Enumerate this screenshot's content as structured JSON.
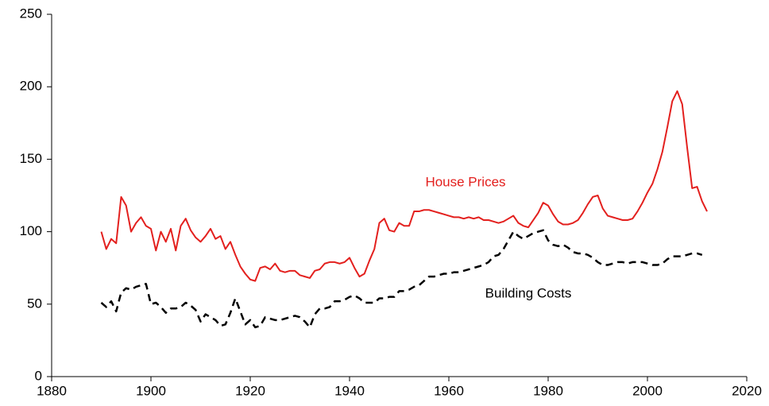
{
  "chart_data": {
    "type": "line",
    "xlim": [
      1880,
      2020
    ],
    "xticks": [
      1880,
      1900,
      1920,
      1940,
      1960,
      1980,
      2000,
      2020
    ],
    "ylim": [
      0,
      250
    ],
    "yticks": [
      0,
      50,
      100,
      150,
      200,
      250
    ],
    "series": [
      {
        "name": "House Prices",
        "color": "#e3201e",
        "dashed": false,
        "x": [
          1890,
          1891,
          1892,
          1893,
          1894,
          1895,
          1896,
          1897,
          1898,
          1899,
          1900,
          1901,
          1902,
          1903,
          1904,
          1905,
          1906,
          1907,
          1908,
          1909,
          1910,
          1911,
          1912,
          1913,
          1914,
          1915,
          1916,
          1917,
          1918,
          1919,
          1920,
          1921,
          1922,
          1923,
          1924,
          1925,
          1926,
          1927,
          1928,
          1929,
          1930,
          1931,
          1932,
          1933,
          1934,
          1935,
          1936,
          1937,
          1938,
          1939,
          1940,
          1941,
          1942,
          1943,
          1944,
          1945,
          1946,
          1947,
          1948,
          1949,
          1950,
          1951,
          1952,
          1953,
          1954,
          1955,
          1956,
          1957,
          1958,
          1959,
          1960,
          1961,
          1962,
          1963,
          1964,
          1965,
          1966,
          1967,
          1968,
          1969,
          1970,
          1971,
          1972,
          1973,
          1974,
          1975,
          1976,
          1977,
          1978,
          1979,
          1980,
          1981,
          1982,
          1983,
          1984,
          1985,
          1986,
          1987,
          1988,
          1989,
          1990,
          1991,
          1992,
          1993,
          1994,
          1995,
          1996,
          1997,
          1998,
          1999,
          2000,
          2001,
          2002,
          2003,
          2004,
          2005,
          2006,
          2007,
          2008,
          2009,
          2010,
          2011,
          2012
        ],
        "values": [
          100,
          88,
          95,
          92,
          124,
          118,
          100,
          106,
          110,
          104,
          102,
          87,
          100,
          93,
          102,
          87,
          104,
          109,
          101,
          96,
          93,
          97,
          102,
          95,
          97,
          88,
          93,
          84,
          76,
          71,
          67,
          66,
          75,
          76,
          74,
          78,
          73,
          72,
          73,
          73,
          70,
          69,
          68,
          73,
          74,
          78,
          79,
          79,
          78,
          79,
          82,
          75,
          69,
          71,
          80,
          88,
          106,
          109,
          101,
          100,
          106,
          104,
          104,
          114,
          114,
          115,
          115,
          114,
          113,
          112,
          111,
          110,
          110,
          109,
          110,
          109,
          110,
          108,
          108,
          107,
          106,
          107,
          109,
          111,
          106,
          104,
          103,
          108,
          113,
          120,
          118,
          112,
          107,
          105,
          105,
          106,
          108,
          113,
          119,
          124,
          125,
          116,
          111,
          110,
          109,
          108,
          108,
          109,
          114,
          120,
          127,
          133,
          143,
          155,
          172,
          190,
          197,
          188,
          158,
          130,
          131,
          121,
          114
        ]
      },
      {
        "name": "Building Costs",
        "color": "#000000",
        "dashed": true,
        "x": [
          1890,
          1891,
          1892,
          1893,
          1894,
          1895,
          1896,
          1897,
          1898,
          1899,
          1900,
          1901,
          1902,
          1903,
          1904,
          1905,
          1906,
          1907,
          1908,
          1909,
          1910,
          1911,
          1912,
          1913,
          1914,
          1915,
          1916,
          1917,
          1918,
          1919,
          1920,
          1921,
          1922,
          1923,
          1924,
          1925,
          1926,
          1927,
          1928,
          1929,
          1930,
          1931,
          1932,
          1933,
          1934,
          1935,
          1936,
          1937,
          1938,
          1939,
          1940,
          1941,
          1942,
          1943,
          1944,
          1945,
          1946,
          1947,
          1948,
          1949,
          1950,
          1951,
          1952,
          1953,
          1954,
          1955,
          1956,
          1957,
          1958,
          1959,
          1960,
          1961,
          1962,
          1963,
          1964,
          1965,
          1966,
          1967,
          1968,
          1969,
          1970,
          1971,
          1972,
          1973,
          1974,
          1975,
          1976,
          1977,
          1978,
          1979,
          1980,
          1981,
          1982,
          1983,
          1984,
          1985,
          1986,
          1987,
          1988,
          1989,
          1990,
          1991,
          1992,
          1993,
          1994,
          1995,
          1996,
          1997,
          1998,
          1999,
          2000,
          2001,
          2002,
          2003,
          2004,
          2005,
          2006,
          2007,
          2008,
          2009,
          2010,
          2011
        ],
        "values": [
          51,
          48,
          52,
          45,
          58,
          61,
          60,
          62,
          63,
          64,
          50,
          51,
          48,
          44,
          47,
          47,
          48,
          51,
          49,
          46,
          38,
          43,
          41,
          39,
          35,
          36,
          44,
          54,
          45,
          36,
          39,
          34,
          35,
          41,
          40,
          39,
          39,
          40,
          41,
          42,
          41,
          38,
          34,
          43,
          47,
          47,
          48,
          52,
          52,
          53,
          55,
          56,
          54,
          51,
          51,
          51,
          54,
          54,
          55,
          55,
          59,
          59,
          60,
          62,
          63,
          66,
          69,
          69,
          70,
          71,
          71,
          72,
          72,
          73,
          74,
          75,
          76,
          77,
          79,
          83,
          84,
          88,
          94,
          100,
          97,
          95,
          97,
          99,
          100,
          101,
          94,
          91,
          90,
          91,
          89,
          86,
          85,
          85,
          84,
          82,
          79,
          77,
          77,
          78,
          79,
          79,
          78,
          79,
          79,
          79,
          78,
          77,
          77,
          78,
          81,
          83,
          83,
          83,
          84,
          85,
          85,
          84
        ]
      }
    ]
  }
}
